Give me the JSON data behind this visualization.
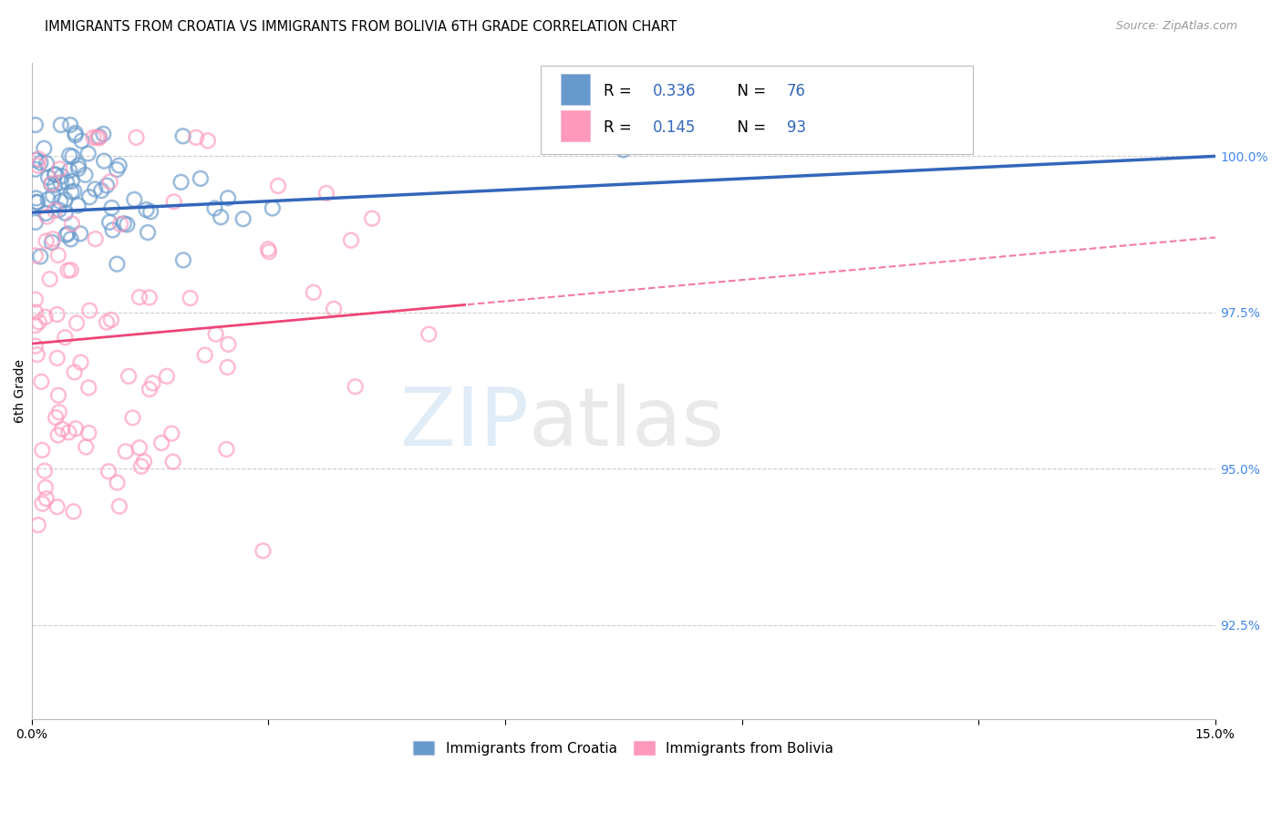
{
  "title": "IMMIGRANTS FROM CROATIA VS IMMIGRANTS FROM BOLIVIA 6TH GRADE CORRELATION CHART",
  "source": "Source: ZipAtlas.com",
  "ylabel": "6th Grade",
  "ylabel_right_ticks": [
    100.0,
    97.5,
    95.0,
    92.5
  ],
  "ylabel_right_labels": [
    "100.0%",
    "97.5%",
    "95.0%",
    "92.5%"
  ],
  "xmin": 0.0,
  "xmax": 15.0,
  "ymin": 91.0,
  "ymax": 101.5,
  "legend_blue_R": "0.336",
  "legend_blue_N": "76",
  "legend_pink_R": "0.145",
  "legend_pink_N": "93",
  "legend_label_blue": "Immigrants from Croatia",
  "legend_label_pink": "Immigrants from Bolivia",
  "blue_color": "#6699CC",
  "pink_color": "#FF99BB",
  "blue_line_color": "#3366BB",
  "pink_line_color": "#EE4477",
  "blue_line_y0": 99.1,
  "blue_line_y15": 100.0,
  "pink_line_y0": 97.0,
  "pink_line_y15": 98.7,
  "pink_dash_start_x": 5.5
}
